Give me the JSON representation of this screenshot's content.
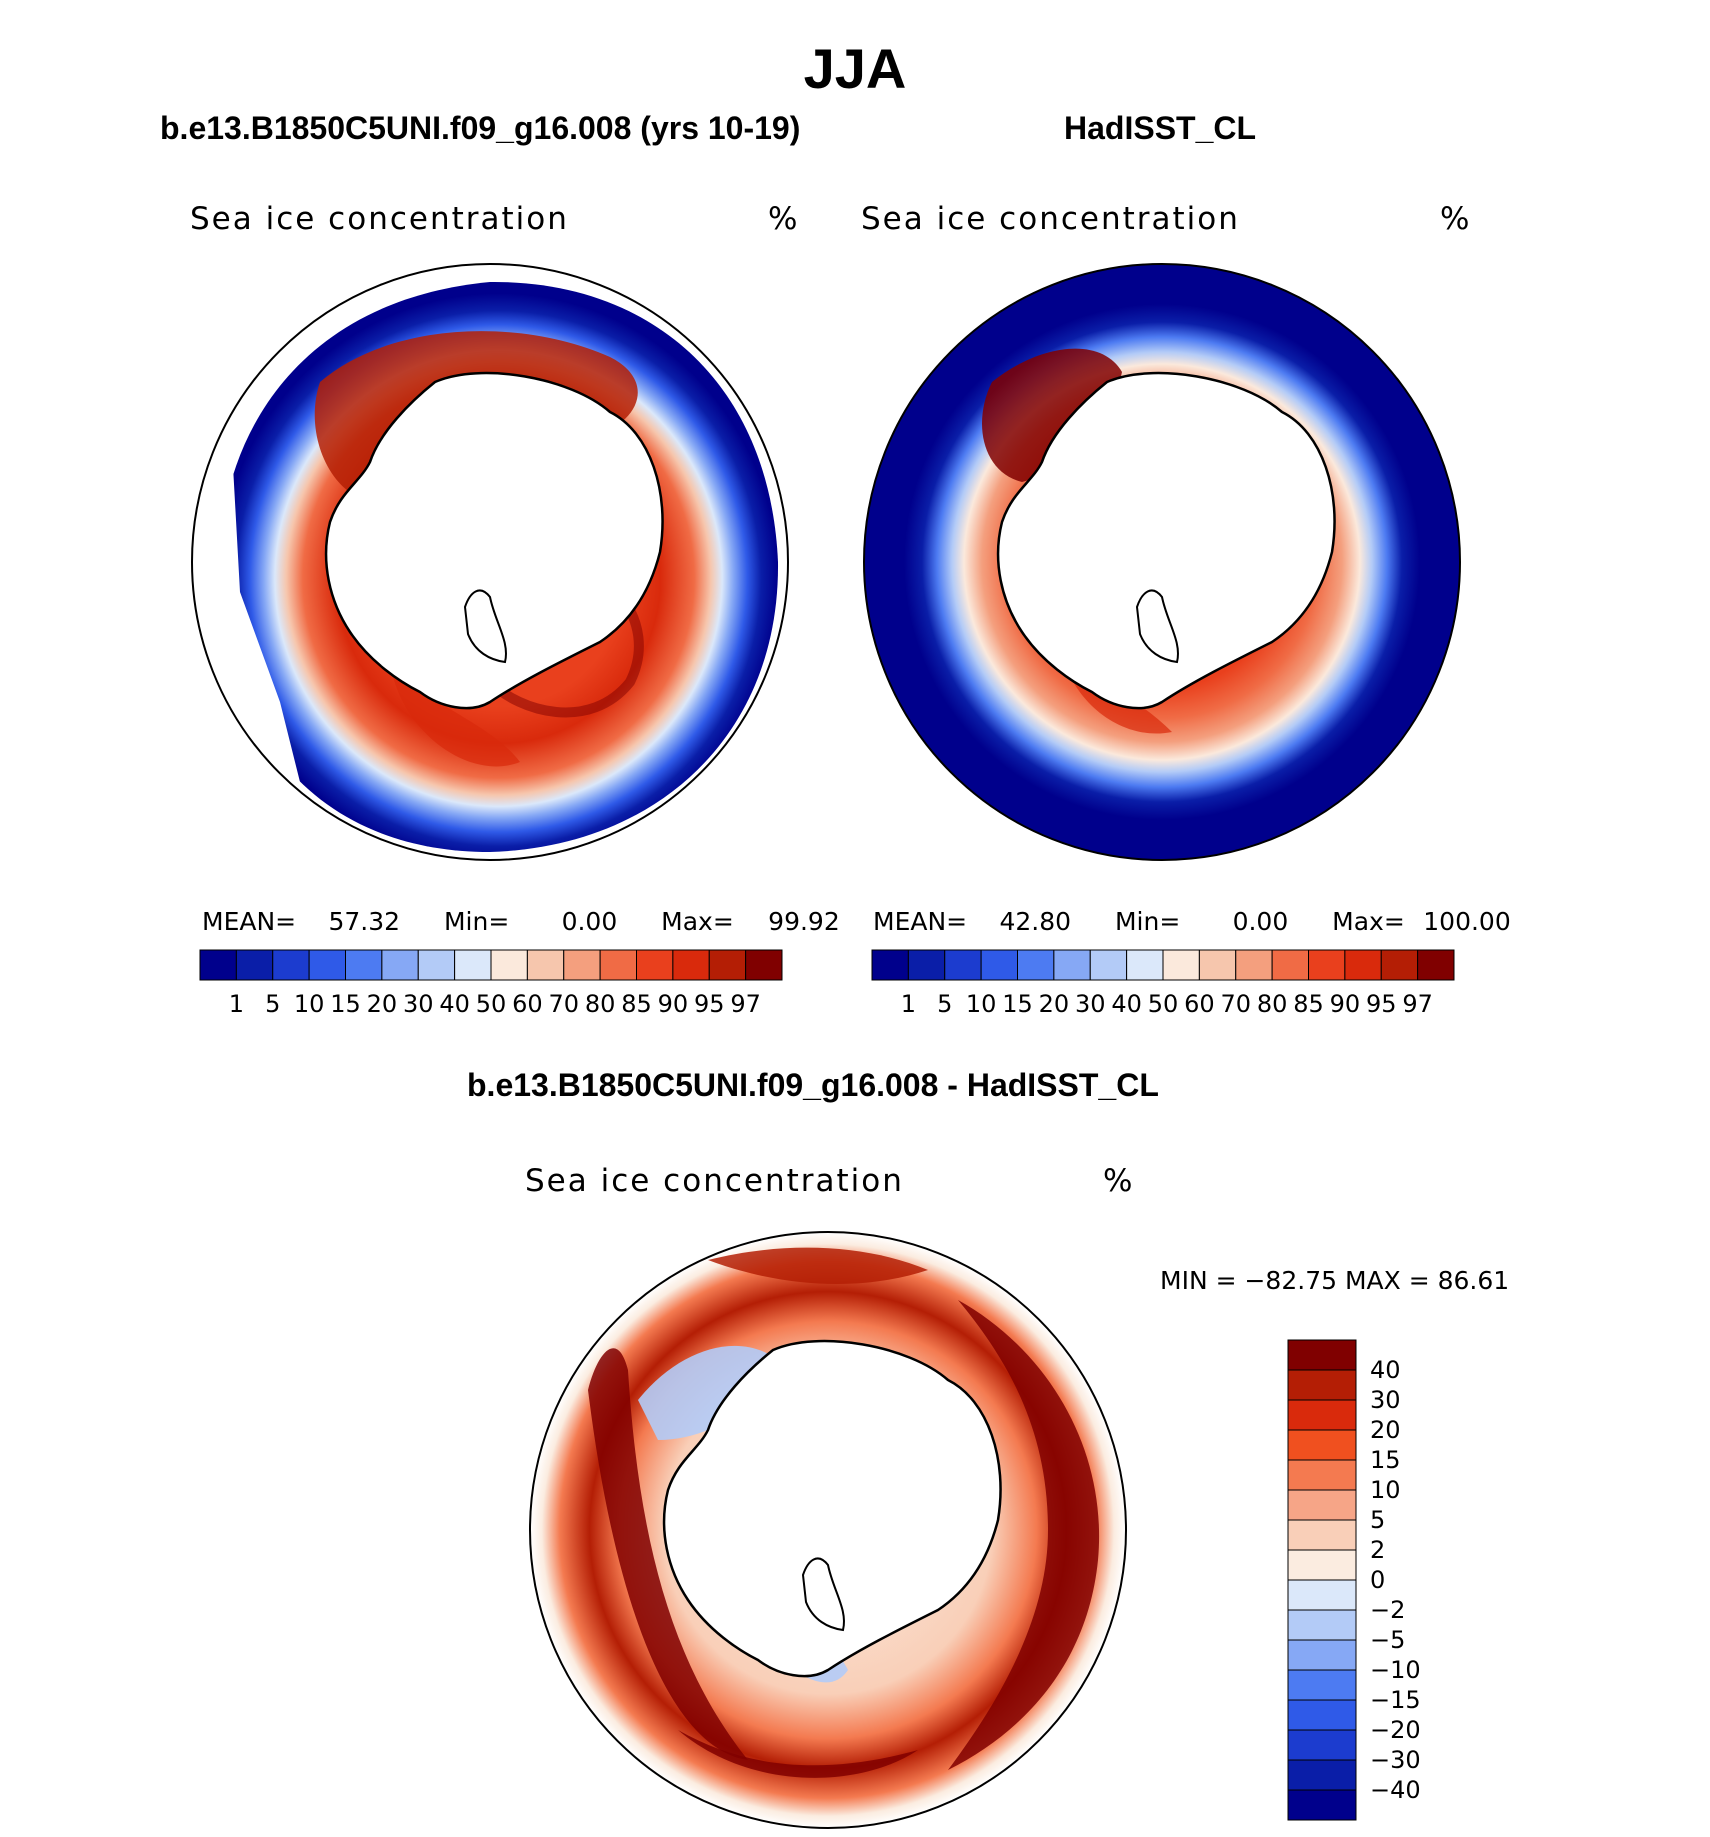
{
  "title": "JJA",
  "panels": {
    "left": {
      "title": "b.e13.B1850C5UNI.f09_g16.008 (yrs 10-19)",
      "label": "Sea ice concentration",
      "unit": "%",
      "mean_label": "MEAN=",
      "mean": "57.32",
      "min_label": "Min=",
      "min": "0.00",
      "max_label": "Max=",
      "max": "99.92"
    },
    "right": {
      "title": "HadISST_CL",
      "label": "Sea ice concentration",
      "unit": "%",
      "mean_label": "MEAN=",
      "mean": "42.80",
      "min_label": "Min=",
      "min": "0.00",
      "max_label": "Max=",
      "max": "100.00"
    },
    "diff": {
      "title": "b.e13.B1850C5UNI.f09_g16.008 - HadISST_CL",
      "label": "Sea ice concentration",
      "unit": "%",
      "minmax": "MIN = −82.75  MAX =   86.61"
    }
  },
  "colorbar_levels": [
    "1",
    "5",
    "10",
    "15",
    "20",
    "30",
    "40",
    "50",
    "60",
    "70",
    "80",
    "85",
    "90",
    "95",
    "97"
  ],
  "colorbar_colors": [
    "#00008c",
    "#0a1ea8",
    "#1c3ccf",
    "#2f5ae8",
    "#4d7bf2",
    "#86a8f5",
    "#b3cbf7",
    "#dbe8fa",
    "#fbe9dc",
    "#f6c6ad",
    "#f49f7e",
    "#f06b45",
    "#e9401d",
    "#d92a0c",
    "#b41e05",
    "#800000"
  ],
  "diff_levels": [
    "40",
    "30",
    "20",
    "15",
    "10",
    "5",
    "2",
    "0",
    "−2",
    "−5",
    "−10",
    "−15",
    "−20",
    "−30",
    "−40"
  ],
  "diff_colors": [
    "#800000",
    "#b41e05",
    "#d92a0c",
    "#f0501f",
    "#f47a50",
    "#f6a587",
    "#f9cfb8",
    "#fbece0",
    "#dbe8fa",
    "#b3cbf7",
    "#86a8f5",
    "#4d7bf2",
    "#2f5ae8",
    "#1c3ccf",
    "#0a1ea8",
    "#00008c"
  ]
}
